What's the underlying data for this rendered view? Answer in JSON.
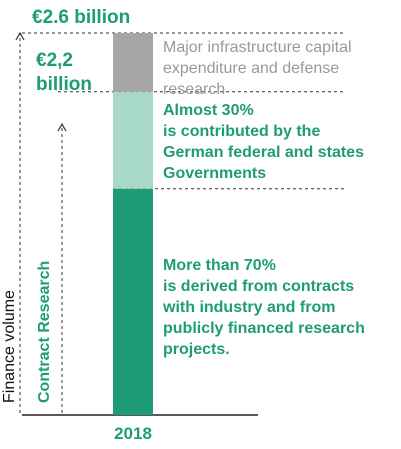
{
  "chart_data": {
    "type": "bar",
    "title": "",
    "categories": [
      "2018"
    ],
    "ylabel_lines": [
      "Finance volume",
      "Contract Research"
    ],
    "ylim": [
      0,
      2.6
    ],
    "totals": [
      {
        "label": "€2.6 billion",
        "value": 2.6
      },
      {
        "label_lines": [
          "€2,2",
          "billion"
        ],
        "value": 2.2
      }
    ],
    "segments": [
      {
        "description_lines": [
          "More than 70%",
          "is derived from contracts",
          "with industry and from",
          "publicly financed research",
          "projects."
        ],
        "value": 1.54,
        "color": "#1e9c78"
      },
      {
        "description_lines": [
          "Almost 30%",
          "is contributed by the",
          "German federal and states",
          "Governments"
        ],
        "value": 0.66,
        "color": "#a8d8c6"
      },
      {
        "description_lines": [
          "Major infrastructure capital",
          "expenditure and defense",
          "research"
        ],
        "value": 0.4,
        "color": "#a6a6a6"
      }
    ]
  },
  "colors": {
    "accent": "#1e9c78",
    "text_gray": "#999999",
    "axis": "#222222"
  }
}
